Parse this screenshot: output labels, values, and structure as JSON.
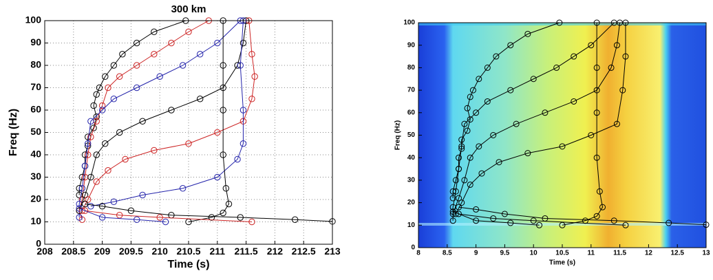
{
  "chart_data": [
    {
      "type": "scatter",
      "title": "300 km",
      "x_label": "Time (s)",
      "y_label": "Freq (Hz)",
      "xlim": [
        208,
        213
      ],
      "ylim": [
        0,
        100
      ],
      "xticks": [
        208,
        208.5,
        209,
        209.5,
        210,
        210.5,
        211,
        211.5,
        212,
        212.5,
        213
      ],
      "yticks": [
        0,
        10,
        20,
        30,
        40,
        50,
        60,
        70,
        80,
        90,
        100
      ],
      "grid": true,
      "series": [
        {
          "color": "#000000",
          "x": [
            210.45,
            209.9,
            209.6,
            209.35,
            209.2,
            209.05,
            208.95,
            208.9,
            208.85,
            208.9,
            208.85,
            208.75,
            208.75,
            208.7,
            208.7,
            208.65,
            208.6,
            208.6
          ],
          "values": [
            100,
            95,
            90,
            85,
            80,
            75,
            70,
            67,
            62,
            57,
            52,
            48,
            44,
            40,
            35,
            30,
            25,
            22
          ]
        },
        {
          "color": "#cc2222",
          "x": [
            210.85,
            210.5,
            210.2,
            209.9,
            209.6,
            209.3,
            209.1,
            209,
            208.9,
            208.8,
            208.75,
            208.7,
            208.65,
            208.6,
            208.65
          ],
          "values": [
            100,
            95,
            90,
            85,
            80,
            75,
            70,
            62,
            55,
            48,
            40,
            30,
            20,
            15,
            11
          ]
        },
        {
          "color": "#2222aa",
          "x": [
            211.4,
            211,
            210.7,
            210.4,
            210,
            209.6,
            209.2,
            209,
            208.8,
            208.75,
            208.7,
            208.65,
            208.6,
            208.6
          ],
          "values": [
            100,
            90,
            85,
            80,
            75,
            70,
            65,
            60,
            55,
            45,
            35,
            25,
            18,
            12
          ]
        },
        {
          "color": "#000000",
          "x": [
            211.5,
            211.45,
            211.35,
            211.1,
            210.7,
            210.2,
            209.7,
            209.3,
            209.05,
            208.9,
            208.8,
            208.7,
            208.6
          ],
          "values": [
            100,
            90,
            80,
            70,
            65,
            60,
            55,
            50,
            45,
            40,
            30,
            22,
            15
          ]
        },
        {
          "color": "#cc2222",
          "x": [
            211.55,
            211.6,
            211.65,
            211.6,
            211.45,
            211,
            210.5,
            209.9,
            209.4,
            209.1,
            208.9,
            208.75,
            208.65
          ],
          "values": [
            100,
            85,
            75,
            65,
            55,
            50,
            45,
            42,
            38,
            33,
            28,
            20,
            15
          ]
        },
        {
          "color": "#2222aa",
          "x": [
            211.45,
            211.4,
            211.45,
            211.45,
            211.35,
            211,
            210.4,
            209.7,
            209.2,
            208.8
          ],
          "values": [
            100,
            80,
            60,
            45,
            38,
            30,
            25,
            22,
            19,
            17
          ]
        },
        {
          "color": "#000000",
          "x": [
            211.1,
            211.1,
            211.1,
            211.1,
            211.15,
            211.2,
            211.1,
            210.9,
            210.5
          ],
          "values": [
            100,
            80,
            60,
            40,
            25,
            18,
            14,
            12,
            10
          ]
        },
        {
          "color": "#000000",
          "x": [
            208.7,
            209,
            209.5,
            210.2,
            211.4,
            212.35,
            213
          ],
          "values": [
            18,
            17,
            15,
            13,
            12,
            11,
            10.2
          ]
        },
        {
          "color": "#cc2222",
          "x": [
            208.7,
            209.3,
            210,
            211.6
          ],
          "values": [
            15,
            13,
            12,
            10
          ]
        },
        {
          "color": "#2222aa",
          "x": [
            208.6,
            209,
            209.6,
            210.1
          ],
          "values": [
            16,
            12,
            11,
            10
          ]
        }
      ]
    },
    {
      "type": "scatter",
      "x_label": "Time (s)",
      "y_label": "Freq (Hz)",
      "xlim": [
        8,
        13
      ],
      "ylim": [
        0,
        100
      ],
      "xticks": [
        8,
        8.5,
        9,
        9.5,
        10,
        10.5,
        11,
        11.5,
        12,
        12.5,
        13
      ],
      "yticks": [
        0,
        10,
        20,
        30,
        40,
        50,
        60,
        70,
        80,
        90,
        100
      ],
      "grid": false,
      "series": [
        {
          "color": "#000000",
          "x": [
            10.45,
            9.9,
            9.6,
            9.35,
            9.2,
            9.05,
            8.95,
            8.9,
            8.85,
            8.9,
            8.85,
            8.75,
            8.75,
            8.7,
            8.7,
            8.65,
            8.6,
            8.6
          ],
          "values": [
            100,
            95,
            90,
            85,
            80,
            75,
            70,
            67,
            62,
            57,
            52,
            48,
            44,
            40,
            35,
            30,
            25,
            22
          ]
        },
        {
          "color": "#000000",
          "x": [
            11.4,
            11,
            10.7,
            10.4,
            10,
            9.6,
            9.2,
            9,
            8.8,
            8.75,
            8.7,
            8.65,
            8.6,
            8.6
          ],
          "values": [
            100,
            90,
            85,
            80,
            75,
            70,
            65,
            60,
            55,
            45,
            35,
            25,
            18,
            12
          ]
        },
        {
          "color": "#000000",
          "x": [
            11.5,
            11.45,
            11.35,
            11.1,
            10.7,
            10.2,
            9.7,
            9.3,
            9.05,
            8.9,
            8.8,
            8.7,
            8.6
          ],
          "values": [
            100,
            90,
            80,
            70,
            65,
            60,
            55,
            50,
            45,
            40,
            30,
            22,
            15
          ]
        },
        {
          "color": "#000000",
          "x": [
            11.6,
            11.6,
            11.55,
            11.45,
            11,
            10.5,
            9.9,
            9.4,
            9.1,
            8.9,
            8.75,
            8.65
          ],
          "values": [
            100,
            85,
            70,
            55,
            50,
            45,
            42,
            38,
            33,
            28,
            20,
            15
          ]
        },
        {
          "color": "#000000",
          "x": [
            11.1,
            11.1,
            11.1,
            11.1,
            11.15,
            11.2,
            11.1,
            10.9,
            10.5
          ],
          "values": [
            100,
            80,
            60,
            40,
            25,
            18,
            14,
            12,
            10
          ]
        },
        {
          "color": "#000000",
          "x": [
            8.7,
            9,
            9.5,
            10.2,
            11.4,
            12.35,
            13
          ],
          "values": [
            18,
            17,
            15,
            13,
            12,
            11,
            10.2
          ]
        },
        {
          "color": "#000000",
          "x": [
            8.7,
            9.3,
            10,
            11.6
          ],
          "values": [
            15,
            13,
            12,
            10
          ]
        },
        {
          "color": "#000000",
          "x": [
            8.6,
            9,
            9.6,
            10.1
          ],
          "values": [
            16,
            12,
            11,
            10
          ]
        }
      ]
    }
  ]
}
